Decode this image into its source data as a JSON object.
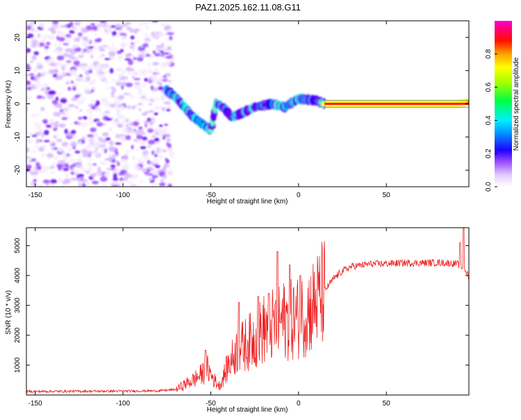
{
  "title": "PAZ1.2025.162.11.08.G11",
  "colors": {
    "snr_line": "#ee2222",
    "colormap": [
      "#f4eaff",
      "#d8b8ff",
      "#9a4dff",
      "#6a00f0",
      "#0000ff",
      "#00a0ff",
      "#00ffe0",
      "#00ff40",
      "#b0ff00",
      "#ffff00",
      "#ffa000",
      "#ff2000",
      "#ff0060",
      "#ff00c0"
    ]
  },
  "chart_data": [
    {
      "type": "heatmap",
      "title": "PAZ1.2025.162.11.08.G11",
      "xlabel": "Height of straight line (km)",
      "ylabel": "Frequency (Hz)",
      "xlim": [
        -155,
        97
      ],
      "ylim": [
        -25,
        25
      ],
      "x_ticks": [
        -150,
        -100,
        -50,
        0,
        50
      ],
      "y_ticks": [
        -20,
        -10,
        0,
        10,
        20
      ],
      "colorbar": {
        "label": "Normalized spectral amplitude",
        "range": [
          0,
          1
        ],
        "ticks": [
          "0.0",
          "0.2",
          "0.4",
          "0.6",
          "0.8"
        ],
        "colormap": "rainbow (white-violet-blue-cyan-green-yellow-red-magenta)"
      },
      "ridge_frequency": [
        {
          "x": -75,
          "y": 4
        },
        {
          "x": -70,
          "y": 2
        },
        {
          "x": -65,
          "y": -1
        },
        {
          "x": -60,
          "y": -4
        },
        {
          "x": -55,
          "y": -6
        },
        {
          "x": -50,
          "y": -8
        },
        {
          "x": -47,
          "y": 0
        },
        {
          "x": -43,
          "y": -1
        },
        {
          "x": -38,
          "y": -4
        },
        {
          "x": -33,
          "y": -3
        },
        {
          "x": -25,
          "y": -1
        },
        {
          "x": -15,
          "y": 0
        },
        {
          "x": -8,
          "y": -1
        },
        {
          "x": 0,
          "y": 1.5
        },
        {
          "x": 10,
          "y": 1
        },
        {
          "x": 15,
          "y": 0
        },
        {
          "x": 50,
          "y": 0
        },
        {
          "x": 90,
          "y": 0
        },
        {
          "x": 97,
          "y": 0.5
        }
      ],
      "noise_region_x": [
        -155,
        -70
      ]
    },
    {
      "type": "line",
      "xlabel": "Height of straight line (km)",
      "ylabel": "SNR (10 * v/v)",
      "xlim": [
        -155,
        97
      ],
      "ylim": [
        0,
        5600
      ],
      "x_ticks": [
        -150,
        -100,
        -50,
        0,
        50
      ],
      "y_ticks": [
        1000,
        2000,
        3000,
        4000,
        5000
      ],
      "trend": [
        {
          "x": -155,
          "y": 120
        },
        {
          "x": -100,
          "y": 130
        },
        {
          "x": -80,
          "y": 140
        },
        {
          "x": -70,
          "y": 180
        },
        {
          "x": -65,
          "y": 350
        },
        {
          "x": -60,
          "y": 500
        },
        {
          "x": -55,
          "y": 700
        },
        {
          "x": -52,
          "y": 900
        },
        {
          "x": -48,
          "y": 500
        },
        {
          "x": -45,
          "y": 300
        },
        {
          "x": -40,
          "y": 1000
        },
        {
          "x": -35,
          "y": 1500
        },
        {
          "x": -30,
          "y": 1700
        },
        {
          "x": -25,
          "y": 1900
        },
        {
          "x": -20,
          "y": 2200
        },
        {
          "x": -15,
          "y": 2300
        },
        {
          "x": -10,
          "y": 2500
        },
        {
          "x": -5,
          "y": 2500
        },
        {
          "x": 0,
          "y": 2600
        },
        {
          "x": 5,
          "y": 2800
        },
        {
          "x": 10,
          "y": 3100
        },
        {
          "x": 15,
          "y": 3500
        },
        {
          "x": 20,
          "y": 3900
        },
        {
          "x": 25,
          "y": 4150
        },
        {
          "x": 30,
          "y": 4300
        },
        {
          "x": 40,
          "y": 4380
        },
        {
          "x": 50,
          "y": 4400
        },
        {
          "x": 60,
          "y": 4420
        },
        {
          "x": 70,
          "y": 4420
        },
        {
          "x": 80,
          "y": 4430
        },
        {
          "x": 90,
          "y": 4400
        },
        {
          "x": 95,
          "y": 4200
        },
        {
          "x": 97,
          "y": 3900
        }
      ],
      "peaks": [
        {
          "x": -53,
          "y": 1500
        },
        {
          "x": -34,
          "y": 3100
        },
        {
          "x": -23,
          "y": 3300
        },
        {
          "x": -17,
          "y": 3400
        },
        {
          "x": -12,
          "y": 4800
        },
        {
          "x": -5,
          "y": 4350
        },
        {
          "x": 1,
          "y": 4000
        },
        {
          "x": 94,
          "y": 5600
        },
        {
          "x": 92,
          "y": 5100
        }
      ]
    }
  ]
}
